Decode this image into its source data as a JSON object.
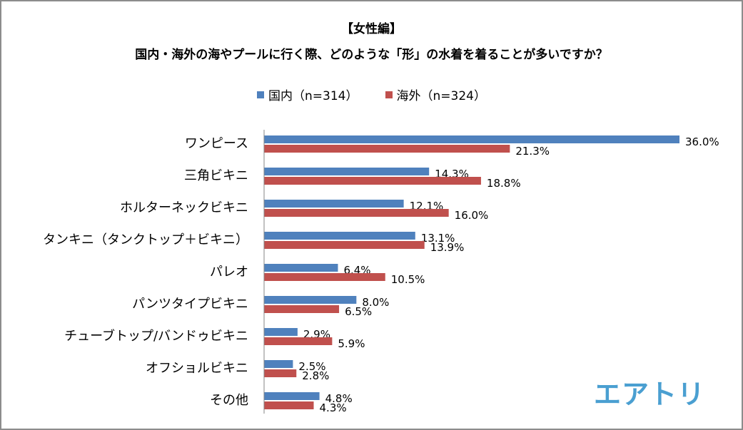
{
  "chart_data": {
    "type": "bar",
    "orientation": "horizontal",
    "subtitle": "【女性編】",
    "title": "国内・海外の海やプールに行く際、どのような「形」の水着を着ることが多いですか？",
    "categories": [
      "ワンピース",
      "三角ビキニ",
      "ホルターネックビキニ",
      "タンキニ（タンクトップ＋ビキニ）",
      "パレオ",
      "パンツタイプビキニ",
      "チューブトップ/バンドゥビキニ",
      "オフショルビキニ",
      "その他"
    ],
    "series": [
      {
        "name": "国内（n=314）",
        "color": "#4f81bd",
        "values": [
          36.0,
          14.3,
          12.1,
          13.1,
          6.4,
          8.0,
          2.9,
          2.5,
          4.8
        ],
        "labels": [
          "36.0%",
          "14.3%",
          "12.1%",
          "13.1%",
          "6.4%",
          "8.0%",
          "2.9%",
          "2.5%",
          "4.8%"
        ]
      },
      {
        "name": "海外（n=324）",
        "color": "#c0504d",
        "values": [
          21.3,
          18.8,
          16.0,
          13.9,
          10.5,
          6.5,
          5.9,
          2.8,
          4.3
        ],
        "labels": [
          "21.3%",
          "18.8%",
          "16.0%",
          "13.9%",
          "10.5%",
          "6.5%",
          "5.9%",
          "2.8%",
          "4.3%"
        ]
      }
    ],
    "unit": "%",
    "xlim": [
      0,
      36
    ],
    "grid": false,
    "legend_position": "top-center"
  },
  "logo": {
    "text": "エアトリ",
    "color": "#4a9fd1"
  }
}
